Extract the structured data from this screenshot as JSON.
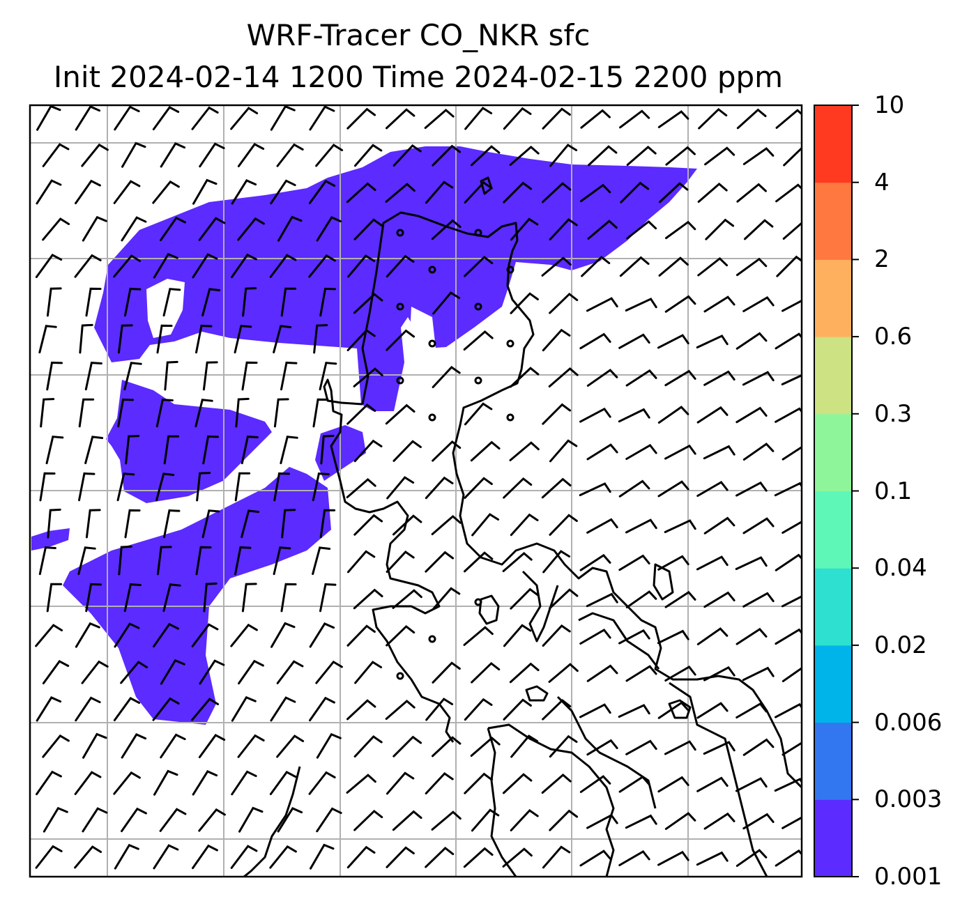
{
  "title": {
    "line1": "WRF-Tracer CO_NKR sfc",
    "line2": "Init 2024-02-14 1200 Time 2024-02-15 2200 ppm"
  },
  "colorbar": {
    "levels": [
      "0.001",
      "0.003",
      "0.006",
      "0.02",
      "0.04",
      "0.1",
      "0.3",
      "0.6",
      "2",
      "4",
      "10"
    ],
    "colors": [
      "#5b2bff",
      "#3377f0",
      "#00b3e8",
      "#2ee0d0",
      "#5ef7b8",
      "#8ff59a",
      "#cce283",
      "#ffb05e",
      "#ff7840",
      "#ff3a20"
    ]
  },
  "map": {
    "plume_color": "#5b2bff",
    "grid_color": "#b0b0b0",
    "coast_color": "#000000",
    "barb_color": "#000000"
  }
}
